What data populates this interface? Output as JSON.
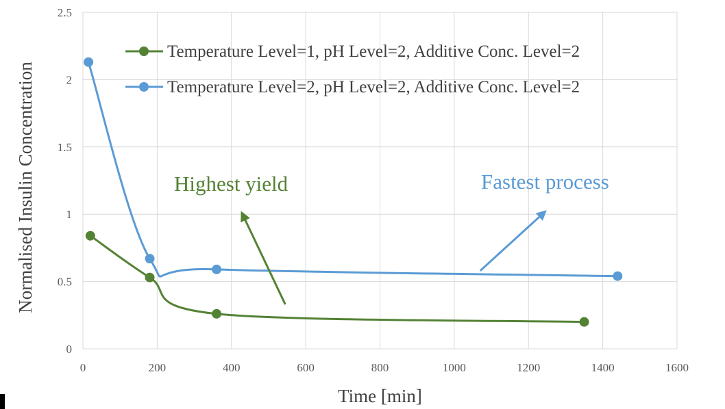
{
  "chart_data": {
    "type": "line",
    "xlabel": "Time [min]",
    "ylabel": "Normalised Insulin Concentration",
    "xlim": [
      0,
      1600
    ],
    "ylim": [
      0,
      2.5
    ],
    "x_ticks": [
      0,
      200,
      400,
      600,
      800,
      1000,
      1200,
      1400,
      1600
    ],
    "y_ticks": [
      0,
      0.5,
      1,
      1.5,
      2,
      2.5
    ],
    "x_tick_labels": [
      "0",
      "200",
      "400",
      "600",
      "800",
      "1000",
      "1200",
      "1400",
      "1600"
    ],
    "y_tick_labels": [
      "0",
      "0.5",
      "1",
      "1.5",
      "2",
      "2.5"
    ],
    "grid": true,
    "smooth": true,
    "legend_position": "top-right",
    "series": [
      {
        "name": "Temperature Level=1, pH Level=2, Additive Conc. Level=2",
        "color": "#548235",
        "x": [
          20,
          180,
          360,
          1350
        ],
        "y": [
          0.84,
          0.53,
          0.26,
          0.2
        ]
      },
      {
        "name": "Temperature Level=2, pH Level=2, Additive Conc. Level=2",
        "color": "#5B9BD5",
        "x": [
          15,
          180,
          360,
          1440
        ],
        "y": [
          2.13,
          0.67,
          0.59,
          0.54
        ]
      }
    ],
    "annotations": [
      {
        "text": "Highest yield",
        "color": "#548235",
        "arrow_from": [
          545,
          0.33
        ],
        "arrow_to": [
          428,
          1.01
        ]
      },
      {
        "text": "Fastest process",
        "color": "#5B9BD5",
        "arrow_from": [
          1070,
          0.58
        ],
        "arrow_to": [
          1245,
          1.02
        ]
      }
    ]
  }
}
